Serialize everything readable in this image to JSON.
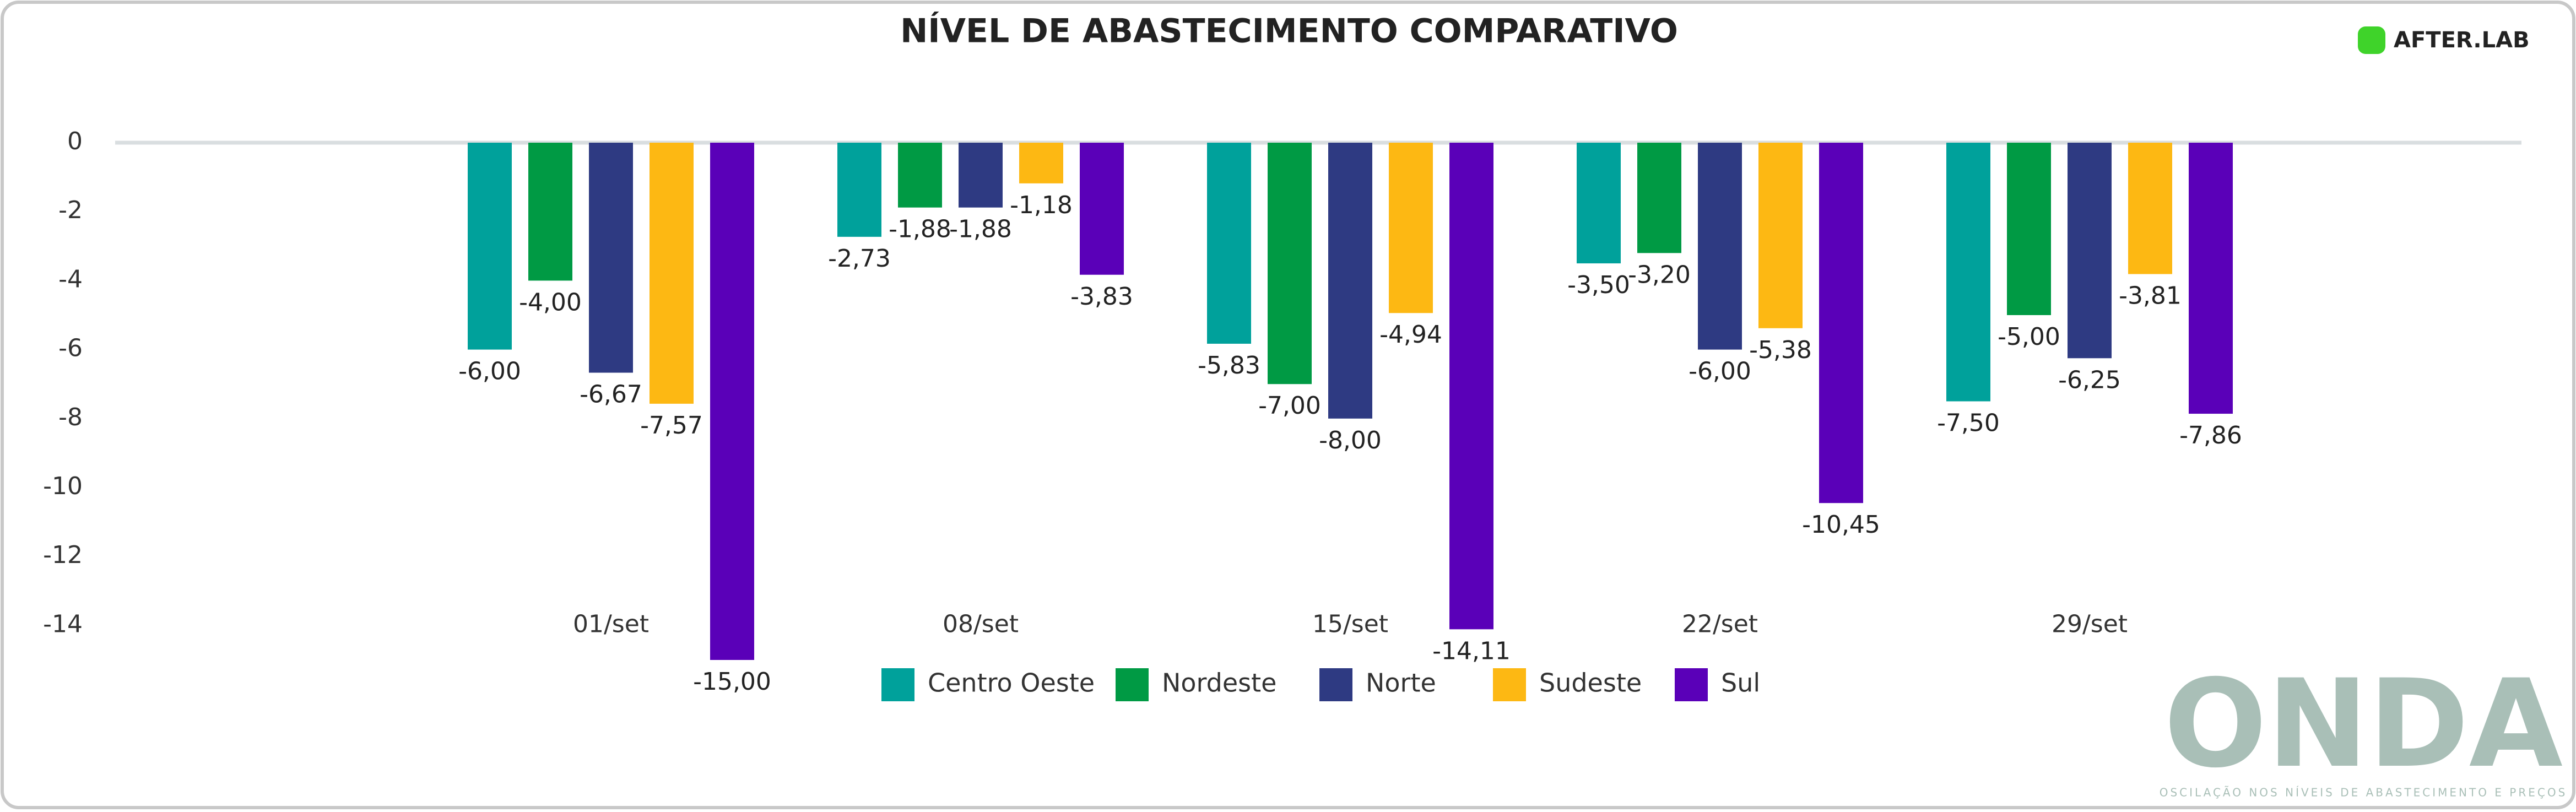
{
  "chart_data": {
    "type": "bar",
    "title": "NÍVEL DE ABASTECIMENTO COMPARATIVO",
    "logo": "AFTER.LAB",
    "watermark": "ONDA",
    "watermark_subtitle": "OSCILAÇÃO NOS NÍVEIS DE ABASTECIMENTO E PREÇOS",
    "categories": [
      "01/set",
      "08/set",
      "15/set",
      "22/set",
      "29/set"
    ],
    "series": [
      {
        "name": "Centro Oeste",
        "color": "#00A19B",
        "values": [
          -6.0,
          -2.73,
          -5.83,
          -3.5,
          -7.5
        ],
        "value_labels": [
          "-6,00",
          "-2,73",
          "-5,83",
          "-3,50",
          "-7,50"
        ]
      },
      {
        "name": "Nordeste",
        "color": "#009A44",
        "values": [
          -4.0,
          -1.88,
          -7.0,
          -3.2,
          -5.0
        ],
        "value_labels": [
          "-4,00",
          "-1,88",
          "-7,00",
          "-3,20",
          "-5,00"
        ]
      },
      {
        "name": "Norte",
        "color": "#2E3A82",
        "values": [
          -6.67,
          -1.88,
          -8.0,
          -6.0,
          -6.25
        ],
        "value_labels": [
          "-6,67",
          "-1,88",
          "-8,00",
          "-6,00",
          "-6,25"
        ]
      },
      {
        "name": "Sudeste",
        "color": "#FDB813",
        "values": [
          -7.57,
          -1.18,
          -4.94,
          -5.38,
          -3.81
        ],
        "value_labels": [
          "-7,57",
          "-1,18",
          "-4,94",
          "-5,38",
          "-3,81"
        ]
      },
      {
        "name": "Sul",
        "color": "#5A00B8",
        "values": [
          -15.0,
          -3.83,
          -14.11,
          -10.45,
          -7.86
        ],
        "value_labels": [
          "-15,00",
          "-3,83",
          "-14,11",
          "-10,45",
          "-7,86"
        ]
      }
    ],
    "ylim": [
      -14,
      2
    ],
    "yticks": [
      0,
      -2,
      -4,
      -6,
      -8,
      -10,
      -12,
      -14
    ],
    "grid_zero_line": true,
    "legend": "bottom"
  }
}
